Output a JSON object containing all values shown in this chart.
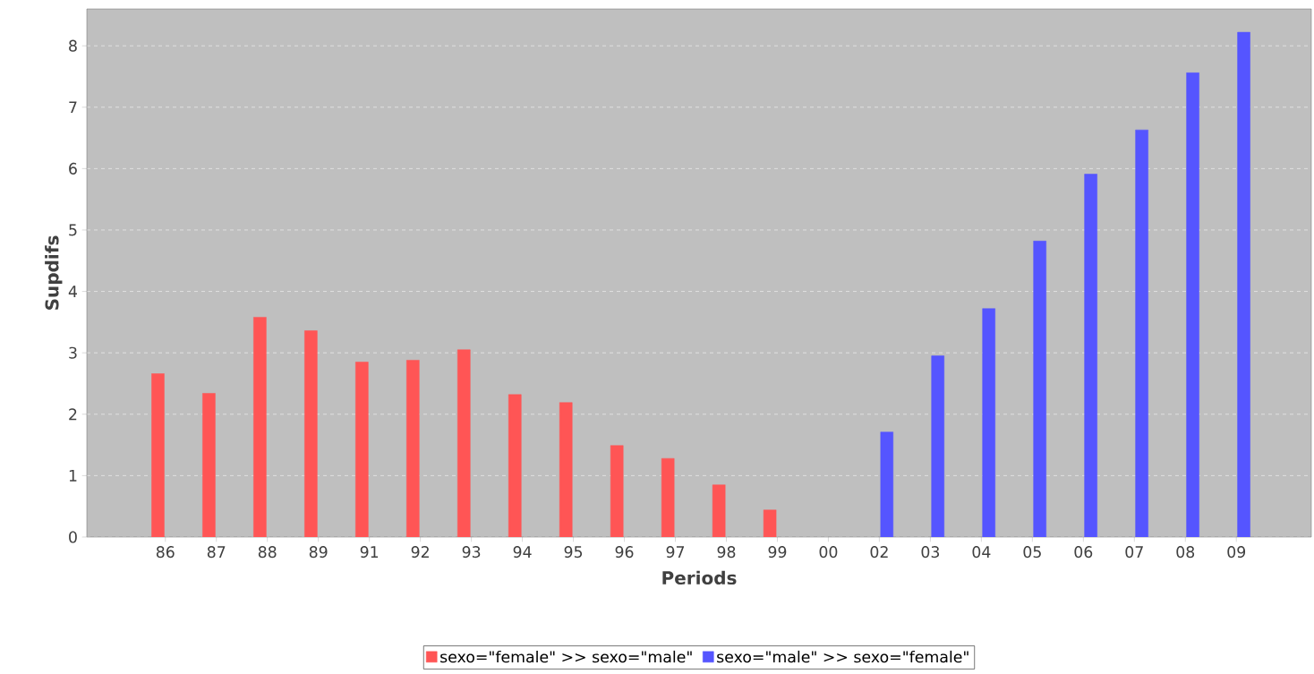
{
  "chart_data": {
    "type": "bar",
    "xlabel": "Periods",
    "ylabel": "Supdifs",
    "categories": [
      "86",
      "87",
      "88",
      "89",
      "91",
      "92",
      "93",
      "94",
      "95",
      "96",
      "97",
      "98",
      "99",
      "00",
      "02",
      "03",
      "04",
      "05",
      "06",
      "07",
      "08",
      "09"
    ],
    "series": [
      {
        "name": "sexo=\"female\" >> sexo=\"male\"",
        "color": "#ff5555",
        "values": [
          2.66,
          2.34,
          3.58,
          3.36,
          2.85,
          2.88,
          3.05,
          2.32,
          2.19,
          1.49,
          1.28,
          0.85,
          0.44,
          null,
          null,
          null,
          null,
          null,
          null,
          null,
          null,
          null
        ]
      },
      {
        "name": "sexo=\"male\" >> sexo=\"female\"",
        "color": "#5555ff",
        "values": [
          null,
          null,
          null,
          null,
          null,
          null,
          null,
          null,
          null,
          null,
          null,
          null,
          null,
          null,
          1.71,
          2.95,
          3.72,
          4.82,
          5.91,
          6.63,
          7.56,
          8.22
        ]
      }
    ],
    "ylim": [
      0,
      8.6
    ],
    "yticks": [
      0,
      1,
      2,
      3,
      4,
      5,
      6,
      7,
      8
    ],
    "grid": "y",
    "legend": "bottom"
  }
}
